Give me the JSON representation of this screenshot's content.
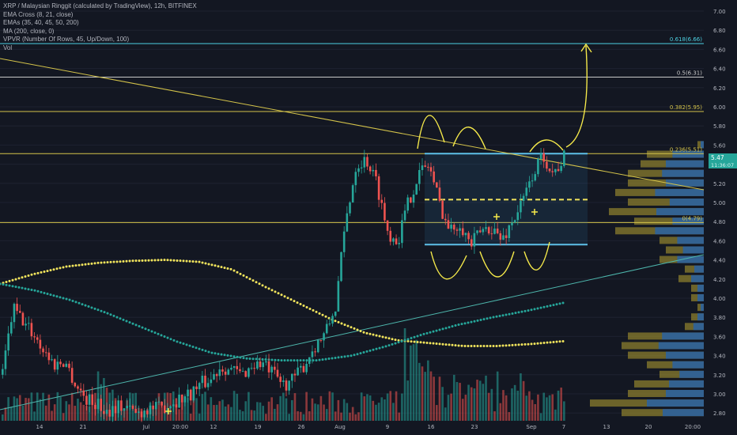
{
  "legend": {
    "title": "XRP / Malaysian Ringgit (calculated by TradingView), 12h, BITFINEX",
    "indicators": [
      "EMA Cross (8, 21, close)",
      "EMAs (35, 40, 45, 50, 200)",
      "MA (200, close, 0)",
      "VPVR (Number Of Rows, 45, Up/Down, 100)",
      "Vol"
    ]
  },
  "colors": {
    "background": "#131722",
    "up": "#26a69a",
    "down": "#ef5350",
    "fib": "#d4c34a",
    "fib_top": "#4dd0e1",
    "ma200": "#f1e45c",
    "ema_dots": "#26a69a",
    "channel": "#5ec0e8",
    "vpvr_up": "#2962a3",
    "vpvr_down": "#8b7d2e",
    "axis_text": "#b2b5be"
  },
  "chart_data": {
    "type": "candlestick",
    "symbol": "XRP / Malaysian Ringgit",
    "interval": "12h",
    "exchange": "BITFINEX",
    "price_axis": {
      "ticks": [
        "7.00",
        "6.80",
        "6.60",
        "6.40",
        "6.20",
        "6.00",
        "5.80",
        "5.60",
        "5.40",
        "5.20",
        "5.00",
        "4.80",
        "4.60",
        "4.40",
        "4.20",
        "4.00",
        "3.80",
        "3.60",
        "3.40",
        "3.20",
        "3.00",
        "2.80"
      ],
      "ylim": [
        2.72,
        7.05
      ]
    },
    "time_axis": {
      "ticks": [
        "14",
        "21",
        "Jul",
        "20:00",
        "12",
        "19",
        "26",
        "Aug",
        "9",
        "16",
        "23",
        "Sep",
        "7",
        "13",
        "20",
        "20:00"
      ]
    },
    "current_price": {
      "label": "5.47",
      "countdown": "11:36:07",
      "value": 5.47
    },
    "fib_levels": [
      {
        "label": "0.618(6.66)",
        "value": 6.66
      },
      {
        "label": "0.5(6.31)",
        "value": 6.31
      },
      {
        "label": "0.382(5.95)",
        "value": 5.95
      },
      {
        "label": "0.236(5.51)",
        "value": 5.51
      },
      {
        "label": "0(4.79)",
        "value": 4.79
      }
    ],
    "channel": {
      "top": 5.51,
      "mid": 5.03,
      "bottom": 4.56
    },
    "price_path": [
      3.2,
      3.9,
      3.75,
      3.62,
      3.45,
      3.3,
      3.35,
      3.1,
      2.95,
      2.9,
      2.82,
      2.88,
      2.85,
      2.8,
      2.86,
      2.84,
      2.9,
      2.95,
      3.0,
      3.1,
      3.15,
      3.3,
      3.25,
      3.2,
      3.3,
      3.32,
      3.2,
      3.1,
      3.15,
      3.3,
      3.5,
      3.62,
      3.9,
      4.8,
      5.4,
      5.45,
      5.2,
      4.7,
      4.6,
      5.0,
      5.3,
      5.4,
      5.0,
      4.7,
      4.8,
      4.55,
      4.7,
      4.75,
      4.6,
      4.8,
      5.0,
      5.3,
      5.5,
      5.3,
      5.47
    ],
    "ma200_path": [
      4.15,
      4.25,
      4.33,
      4.37,
      4.39,
      4.4,
      4.38,
      4.3,
      4.12,
      3.95,
      3.78,
      3.64,
      3.56,
      3.53,
      3.5,
      3.5,
      3.52,
      3.55
    ],
    "ema_path": [
      4.15,
      4.08,
      3.98,
      3.85,
      3.7,
      3.55,
      3.43,
      3.37,
      3.35,
      3.35,
      3.4,
      3.5,
      3.62,
      3.72,
      3.8,
      3.87,
      3.95
    ],
    "vpvr_rows": [
      {
        "price": 5.6,
        "total": 0.05,
        "up": 0.5
      },
      {
        "price": 5.5,
        "total": 0.45,
        "up": 0.55
      },
      {
        "price": 5.4,
        "total": 0.5,
        "up": 0.6
      },
      {
        "price": 5.3,
        "total": 0.6,
        "up": 0.55
      },
      {
        "price": 5.2,
        "total": 0.6,
        "up": 0.5
      },
      {
        "price": 5.1,
        "total": 0.7,
        "up": 0.55
      },
      {
        "price": 5.0,
        "total": 0.6,
        "up": 0.45
      },
      {
        "price": 4.9,
        "total": 0.75,
        "up": 0.5
      },
      {
        "price": 4.8,
        "total": 0.55,
        "up": 0.45
      },
      {
        "price": 4.7,
        "total": 0.7,
        "up": 0.55
      },
      {
        "price": 4.6,
        "total": 0.35,
        "up": 0.6
      },
      {
        "price": 4.5,
        "total": 0.3,
        "up": 0.55
      },
      {
        "price": 4.4,
        "total": 0.35,
        "up": 0.6
      },
      {
        "price": 4.3,
        "total": 0.15,
        "up": 0.5
      },
      {
        "price": 4.2,
        "total": 0.2,
        "up": 0.5
      },
      {
        "price": 4.1,
        "total": 0.1,
        "up": 0.5
      },
      {
        "price": 4.0,
        "total": 0.1,
        "up": 0.5
      },
      {
        "price": 3.9,
        "total": 0.05,
        "up": 0.5
      },
      {
        "price": 3.8,
        "total": 0.1,
        "up": 0.5
      },
      {
        "price": 3.7,
        "total": 0.15,
        "up": 0.55
      },
      {
        "price": 3.6,
        "total": 0.6,
        "up": 0.55
      },
      {
        "price": 3.5,
        "total": 0.65,
        "up": 0.55
      },
      {
        "price": 3.4,
        "total": 0.6,
        "up": 0.5
      },
      {
        "price": 3.3,
        "total": 0.45,
        "up": 0.55
      },
      {
        "price": 3.2,
        "total": 0.35,
        "up": 0.55
      },
      {
        "price": 3.1,
        "total": 0.55,
        "up": 0.5
      },
      {
        "price": 3.0,
        "total": 0.6,
        "up": 0.5
      },
      {
        "price": 2.9,
        "total": 0.9,
        "up": 0.5
      },
      {
        "price": 2.8,
        "total": 0.65,
        "up": 0.5
      }
    ]
  }
}
